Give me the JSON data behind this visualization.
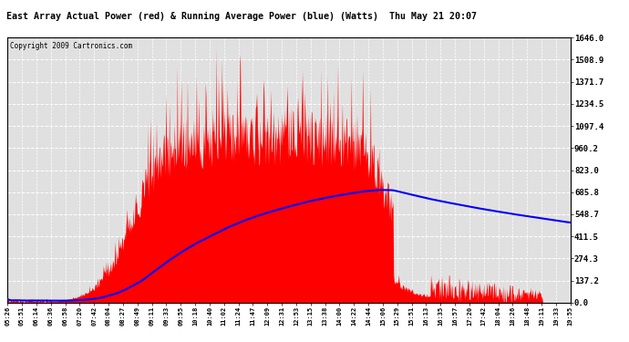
{
  "title": "East Array Actual Power (red) & Running Average Power (blue) (Watts)  Thu May 21 20:07",
  "copyright": "Copyright 2009 Cartronics.com",
  "ylim": [
    0.0,
    1646.0
  ],
  "yticks": [
    0.0,
    137.2,
    274.3,
    411.5,
    548.7,
    685.8,
    823.0,
    960.2,
    1097.4,
    1234.5,
    1371.7,
    1508.9,
    1646.0
  ],
  "bg_color": "#e8e8e8",
  "grid_color": "#ffffff",
  "fill_color": "red",
  "avg_color": "blue",
  "xtick_labels": [
    "05:26",
    "05:51",
    "06:14",
    "06:36",
    "06:58",
    "07:20",
    "07:42",
    "08:04",
    "08:27",
    "08:49",
    "09:11",
    "09:33",
    "09:55",
    "10:18",
    "10:40",
    "11:02",
    "11:24",
    "11:47",
    "12:09",
    "12:31",
    "12:53",
    "13:15",
    "13:38",
    "14:00",
    "14:22",
    "14:44",
    "15:06",
    "15:29",
    "15:51",
    "16:13",
    "16:35",
    "16:57",
    "17:20",
    "17:42",
    "18:04",
    "18:26",
    "18:48",
    "19:11",
    "19:33",
    "19:55"
  ],
  "n_points": 1000,
  "seed": 12345
}
